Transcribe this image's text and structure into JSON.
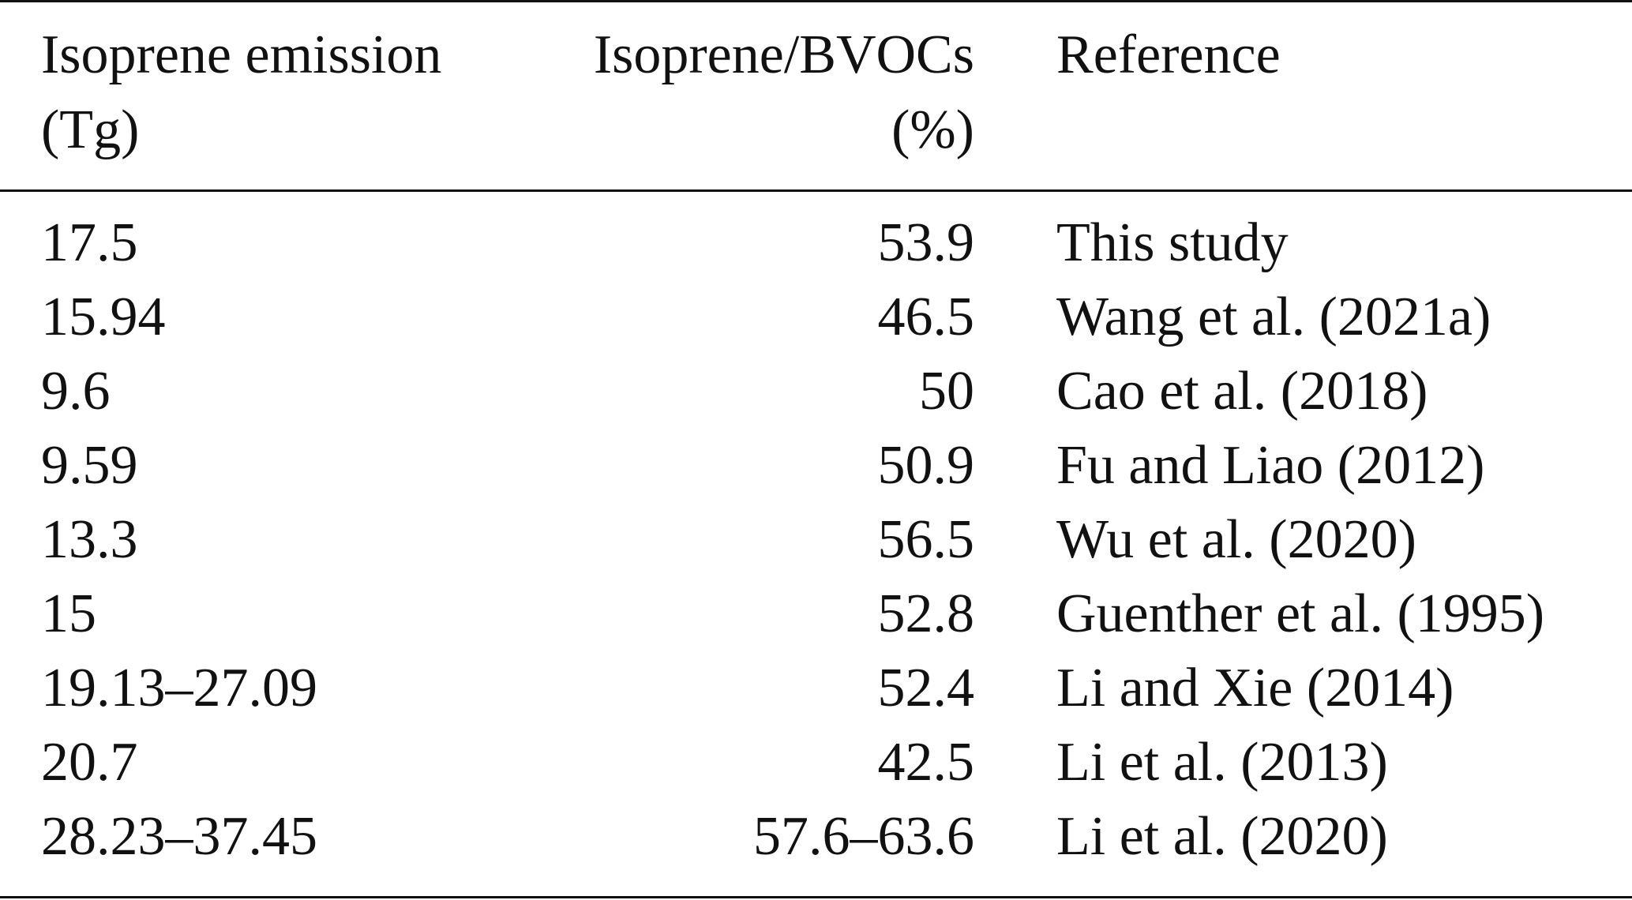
{
  "header": {
    "col1_line1": "Isoprene emission",
    "col1_line2": "(Tg)",
    "col2_line1": "Isoprene/BVOCs",
    "col2_line2": "(%)",
    "col3_line1": "Reference"
  },
  "rows": [
    {
      "emission": "17.5",
      "ratio": "53.9",
      "reference": "This study"
    },
    {
      "emission": "15.94",
      "ratio": "46.5",
      "reference": "Wang et al. (2021a)"
    },
    {
      "emission": "9.6",
      "ratio": "50",
      "reference": "Cao et al. (2018)"
    },
    {
      "emission": "9.59",
      "ratio": "50.9",
      "reference": "Fu and Liao (2012)"
    },
    {
      "emission": "13.3",
      "ratio": "56.5",
      "reference": "Wu et al. (2020)"
    },
    {
      "emission": "15",
      "ratio": "52.8",
      "reference": "Guenther et al. (1995)"
    },
    {
      "emission": "19.13–27.09",
      "ratio": "52.4",
      "reference": "Li and Xie (2014)"
    },
    {
      "emission": "20.7",
      "ratio": "42.5",
      "reference": "Li et al. (2013)"
    },
    {
      "emission": "28.23–37.45",
      "ratio": "57.6–63.6",
      "reference": "Li et al. (2020)"
    }
  ]
}
